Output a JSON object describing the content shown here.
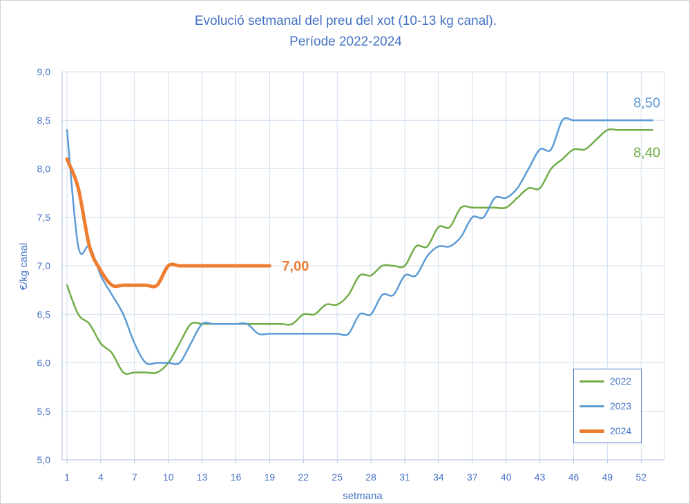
{
  "chart_data": {
    "type": "line",
    "title": "Evolució setmanal del preu del xot (10-13 kg canal).",
    "subtitle": "Període 2022-2024",
    "xlabel": "setmana",
    "ylabel": "€/kg canal",
    "xlim": [
      1,
      53
    ],
    "ylim": [
      5.0,
      9.0
    ],
    "x_ticks": [
      1,
      4,
      7,
      10,
      13,
      16,
      19,
      22,
      25,
      28,
      31,
      34,
      37,
      40,
      43,
      46,
      49,
      52
    ],
    "y_ticks": [
      "5,0",
      "5,5",
      "6,0",
      "6,5",
      "7,0",
      "7,5",
      "8,0",
      "8,5",
      "9,0"
    ],
    "grid": true,
    "legend_position": "bottom-right",
    "series": [
      {
        "name": "2022",
        "color": "#70AD47",
        "x": [
          1,
          2,
          3,
          4,
          5,
          6,
          7,
          8,
          9,
          10,
          11,
          12,
          13,
          14,
          15,
          16,
          17,
          18,
          19,
          20,
          21,
          22,
          23,
          24,
          25,
          26,
          27,
          28,
          29,
          30,
          31,
          32,
          33,
          34,
          35,
          36,
          37,
          38,
          39,
          40,
          41,
          42,
          43,
          44,
          45,
          46,
          47,
          48,
          49,
          50,
          51,
          52,
          53
        ],
        "values": [
          6.8,
          6.5,
          6.4,
          6.2,
          6.1,
          5.9,
          5.9,
          5.9,
          5.9,
          6.0,
          6.2,
          6.4,
          6.4,
          6.4,
          6.4,
          6.4,
          6.4,
          6.4,
          6.4,
          6.4,
          6.4,
          6.5,
          6.5,
          6.6,
          6.6,
          6.7,
          6.9,
          6.9,
          7.0,
          7.0,
          7.0,
          7.2,
          7.2,
          7.4,
          7.4,
          7.6,
          7.6,
          7.6,
          7.6,
          7.6,
          7.7,
          7.8,
          7.8,
          8.0,
          8.1,
          8.2,
          8.2,
          8.3,
          8.4,
          8.4,
          8.4,
          8.4,
          8.4
        ],
        "end_label": "8,40"
      },
      {
        "name": "2023",
        "color": "#5B9BD5",
        "x": [
          1,
          2,
          3,
          4,
          5,
          6,
          7,
          8,
          9,
          10,
          11,
          12,
          13,
          14,
          15,
          16,
          17,
          18,
          19,
          20,
          21,
          22,
          23,
          24,
          25,
          26,
          27,
          28,
          29,
          30,
          31,
          32,
          33,
          34,
          35,
          36,
          37,
          38,
          39,
          40,
          41,
          42,
          43,
          44,
          45,
          46,
          47,
          48,
          49,
          50,
          51,
          52,
          53
        ],
        "values": [
          8.4,
          7.2,
          7.2,
          6.9,
          6.7,
          6.5,
          6.2,
          6.0,
          6.0,
          6.0,
          6.0,
          6.2,
          6.4,
          6.4,
          6.4,
          6.4,
          6.4,
          6.3,
          6.3,
          6.3,
          6.3,
          6.3,
          6.3,
          6.3,
          6.3,
          6.3,
          6.5,
          6.5,
          6.7,
          6.7,
          6.9,
          6.9,
          7.1,
          7.2,
          7.2,
          7.3,
          7.5,
          7.5,
          7.7,
          7.7,
          7.8,
          8.0,
          8.2,
          8.2,
          8.5,
          8.5,
          8.5,
          8.5,
          8.5,
          8.5,
          8.5,
          8.5,
          8.5
        ],
        "end_label": "8,50"
      },
      {
        "name": "2024",
        "color": "#ED7D31",
        "x": [
          1,
          2,
          3,
          4,
          5,
          6,
          7,
          8,
          9,
          10,
          11,
          12,
          13,
          14,
          15,
          16,
          17,
          18,
          19
        ],
        "values": [
          8.1,
          7.8,
          7.2,
          6.95,
          6.8,
          6.8,
          6.8,
          6.8,
          6.8,
          7.0,
          7.0,
          7.0,
          7.0,
          7.0,
          7.0,
          7.0,
          7.0,
          7.0,
          7.0
        ],
        "end_label": "7,00"
      }
    ]
  }
}
